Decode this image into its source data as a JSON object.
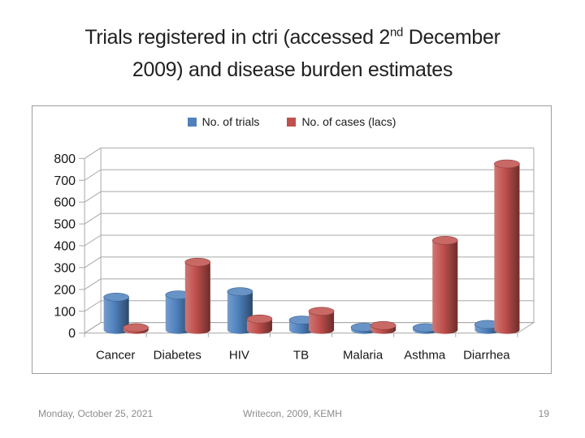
{
  "title": {
    "line1_pre": "Trials registered in ctri (accessed 2",
    "line1_sup": "nd",
    "line1_post": " December",
    "line2": "2009) and disease burden estimates"
  },
  "footer": {
    "date": "Monday, October 25, 2021",
    "center": "Writecon, 2009, KEMH",
    "page_number": "19"
  },
  "chart_data": {
    "type": "bar",
    "style": "3d-cylinder",
    "title": "",
    "categories": [
      "Cancer",
      "Diabetes",
      "HIV",
      "TB",
      "Malaria",
      "Asthma",
      "Diarrhea"
    ],
    "series": [
      {
        "name": "No. of trials",
        "color": "#4F81BD",
        "values": [
          150,
          160,
          175,
          45,
          12,
          10,
          25
        ]
      },
      {
        "name": "No. of cases (lacs)",
        "color": "#C0504D",
        "values": [
          10,
          310,
          50,
          85,
          20,
          410,
          760
        ]
      }
    ],
    "ylim": [
      0,
      800
    ],
    "ytick_step": 100,
    "grid": true,
    "legend_position": "top",
    "axis_color": "#A8A8A8",
    "label_color": "#161616"
  }
}
